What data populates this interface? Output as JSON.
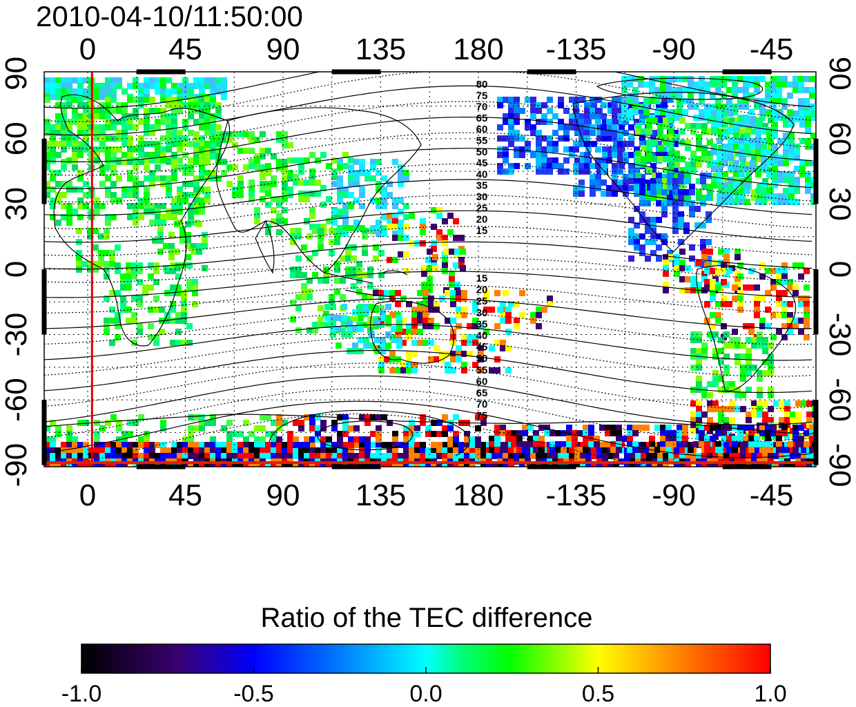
{
  "timestamp": "2010-04-10/11:50:00",
  "map": {
    "lon_ticks": [
      "0",
      "45",
      "90",
      "135",
      "180",
      "-135",
      "-90",
      "-45"
    ],
    "lat_ticks": [
      "90",
      "60",
      "30",
      "0",
      "-30",
      "-60",
      "-90"
    ],
    "terminator_lon": 2,
    "contour_labels_north": [
      "80",
      "75",
      "70",
      "65",
      "60",
      "55",
      "50",
      "45",
      "40",
      "35",
      "30",
      "25",
      "20",
      "15"
    ],
    "contour_labels_south": [
      "15",
      "20",
      "25",
      "30",
      "35",
      "40",
      "45",
      "50",
      "55",
      "60",
      "65",
      "70",
      "75"
    ],
    "colors": {
      "terminator": "#dd0000",
      "grid": "#000000",
      "frame": "#000000"
    }
  },
  "colorbar": {
    "title": "Ratio of the TEC difference",
    "ticks": [
      "-1.0",
      "-0.5",
      "0.0",
      "0.5",
      "1.0"
    ],
    "range": [
      -1.0,
      1.0
    ],
    "colors": [
      "#000000",
      "#3a0070",
      "#0000ff",
      "#00ffff",
      "#00ff00",
      "#ffff00",
      "#ff8000",
      "#ff0000"
    ]
  }
}
